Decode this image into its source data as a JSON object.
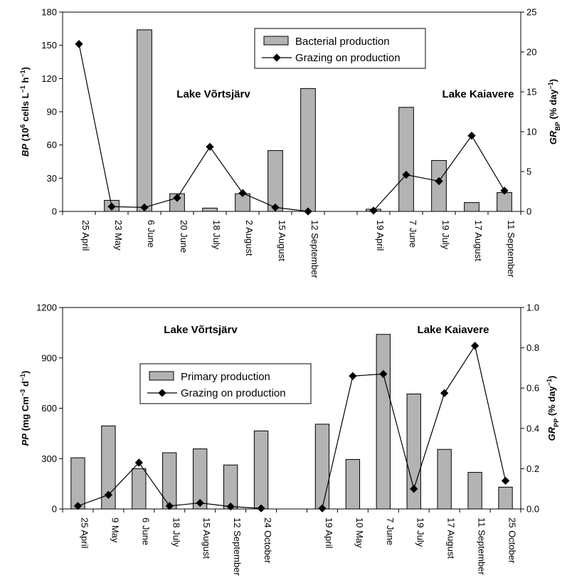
{
  "chart_data": [
    {
      "type": "bar",
      "legend": {
        "bar_label": "Bacterial production",
        "line_label": "Grazing on production",
        "placement": "top-center"
      },
      "ylabel_left": {
        "main": "BP",
        "rest": " (10",
        "sup1": "6",
        "mid": " cells L",
        "sup2": "−1",
        "mid2": " h",
        "sup3": "−1",
        "end": ")"
      },
      "ylabel_right": {
        "main": "GR",
        "sub": "BP",
        "rest": " (% day",
        "sup": "−1",
        "end": ")"
      },
      "y_left": {
        "min": 0,
        "max": 180,
        "ticks": [
          "0",
          "30",
          "60",
          "90",
          "120",
          "150",
          "180"
        ]
      },
      "y_right": {
        "min": 0,
        "max": 25,
        "ticks": [
          "0",
          "5",
          "10",
          "15",
          "20",
          "25"
        ]
      },
      "groups": [
        {
          "name": "Lake Võrtsjärv",
          "categories": [
            "25 April",
            "23 May",
            "6 June",
            "20 June",
            "18 July",
            "2 August",
            "15 August",
            "12 September"
          ],
          "bar_values": [
            null,
            10,
            164,
            16,
            3,
            16,
            55,
            111
          ],
          "line_values": [
            21.0,
            0.6,
            0.5,
            1.7,
            8.1,
            2.3,
            0.5,
            0.0
          ]
        },
        {
          "name": "Lake Kaiavere",
          "categories": [
            "19 April",
            "7 June",
            "19 July",
            "17 August",
            "11 September"
          ],
          "bar_values": [
            2,
            94,
            46,
            8,
            17
          ],
          "line_values": [
            0.1,
            4.6,
            3.8,
            9.5,
            2.6
          ]
        }
      ],
      "colors": {
        "bar": "#b3b3b3",
        "line": "#000000"
      }
    },
    {
      "type": "bar",
      "legend": {
        "bar_label": "Primary production",
        "line_label": "Grazing on production",
        "placement": "center-left"
      },
      "ylabel_left": {
        "main": "PP",
        "rest": " (mg Cm",
        "sup1": "−3",
        "mid": " d",
        "sup2": "−1",
        "end": ")"
      },
      "ylabel_right": {
        "main": "GR",
        "sub": "PP",
        "rest": " (% day",
        "sup": "−1",
        "end": ")"
      },
      "y_left": {
        "min": 0,
        "max": 1200,
        "ticks": [
          "0",
          "300",
          "600",
          "900",
          "1200"
        ]
      },
      "y_right": {
        "min": 0,
        "max": 1.0,
        "ticks": [
          "0.0",
          "0.2",
          "0.4",
          "0.6",
          "0.8",
          "1.0"
        ]
      },
      "groups": [
        {
          "name": "Lake Võrtsjärv",
          "categories": [
            "25 April",
            "9 May",
            "6 June",
            "18 July",
            "15 August",
            "12 September",
            "24 October"
          ],
          "bar_values": [
            305,
            495,
            240,
            335,
            358,
            262,
            465
          ],
          "line_values": [
            0.015,
            0.07,
            0.23,
            0.015,
            0.03,
            0.012,
            0.003
          ]
        },
        {
          "name": "Lake Kaiavere",
          "categories": [
            "19 April",
            "10 May",
            "7 June",
            "19 July",
            "17 August",
            "11 September",
            "25 October"
          ],
          "bar_values": [
            505,
            295,
            1040,
            685,
            355,
            218,
            130
          ],
          "line_values": [
            0.003,
            0.66,
            0.67,
            0.1,
            0.575,
            0.81,
            0.14
          ]
        }
      ],
      "colors": {
        "bar": "#b3b3b3",
        "line": "#000000"
      }
    }
  ]
}
